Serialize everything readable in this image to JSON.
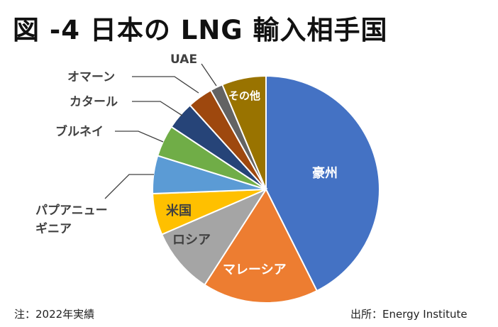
{
  "chart_data": {
    "type": "pie",
    "title": "図 -4 日本の LNG 輸入相手国",
    "start": "top, clockwise",
    "slices": [
      {
        "label": "豪州",
        "value": 42.6,
        "color": "#4472C4",
        "label_pos": "inside",
        "label_color": "#ffffff"
      },
      {
        "label": "マレーシア",
        "value": 16.5,
        "color": "#ED7D31",
        "label_pos": "inside",
        "label_color": "#ffffff"
      },
      {
        "label": "ロシア",
        "value": 9.4,
        "color": "#A5A5A5",
        "label_pos": "inside",
        "label_color": "#404040"
      },
      {
        "label": "米国",
        "value": 5.9,
        "color": "#FFC000",
        "label_pos": "inside",
        "label_color": "#404040"
      },
      {
        "label": "パプアニュー",
        "label2": "ギニア",
        "value": 5.4,
        "color": "#5B9BD5",
        "label_pos": "outside"
      },
      {
        "label": "ブルネイ",
        "value": 4.5,
        "color": "#70AD47",
        "label_pos": "outside"
      },
      {
        "label": "カタール",
        "value": 4.0,
        "color": "#264478",
        "label_pos": "outside"
      },
      {
        "label": "オマーン",
        "value": 3.6,
        "color": "#9E480E",
        "label_pos": "outside"
      },
      {
        "label": "UAE",
        "value": 1.8,
        "color": "#636363",
        "label_pos": "outside"
      },
      {
        "label": "その他",
        "value": 6.3,
        "color": "#997300",
        "label_pos": "inside",
        "label_color": "#ffffff"
      }
    ]
  },
  "footer": {
    "note": "注：2022年実績",
    "source": "出所：Energy Institute"
  }
}
